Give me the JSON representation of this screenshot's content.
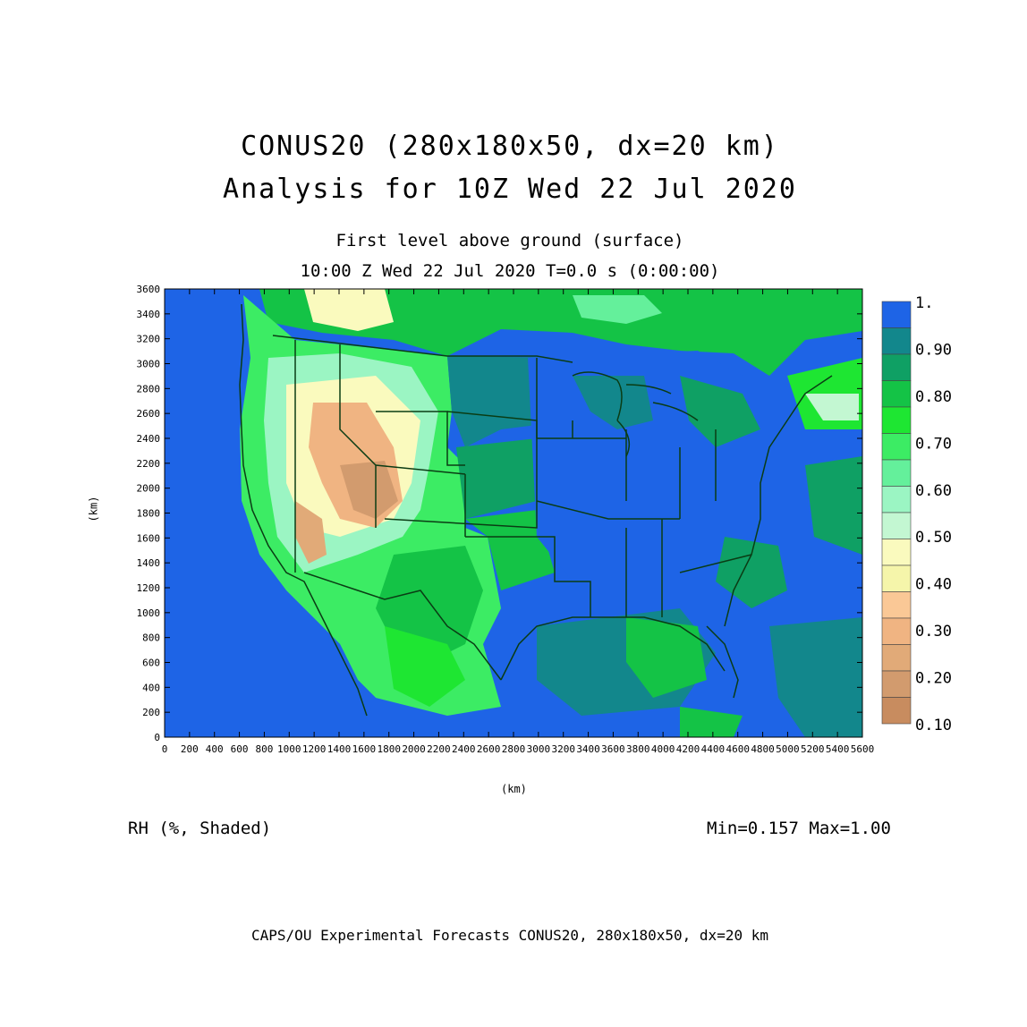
{
  "title": {
    "line1": "CONUS20 (280x180x50, dx=20 km)",
    "line2": "Analysis for 10Z Wed 22 Jul 2020"
  },
  "subtitle": {
    "level": "First level above ground (surface)",
    "time": "10:00 Z Wed 22 Jul 2020   T=0.0 s (0:00:00)"
  },
  "axes": {
    "ylabel": "(km)",
    "xlabel": "(km)",
    "x_ticks": [
      "0",
      "200",
      "400",
      "600",
      "800",
      "1000",
      "1200",
      "1400",
      "1600",
      "1800",
      "2000",
      "2200",
      "2400",
      "2600",
      "2800",
      "3000",
      "3200",
      "3400",
      "3600",
      "3800",
      "4000",
      "4200",
      "4400",
      "4600",
      "4800",
      "5000",
      "5200",
      "5400",
      "5600"
    ],
    "y_ticks": [
      "0",
      "200",
      "400",
      "600",
      "800",
      "1000",
      "1200",
      "1400",
      "1600",
      "1800",
      "2000",
      "2200",
      "2400",
      "2600",
      "2800",
      "3000",
      "3200",
      "3400",
      "3600"
    ],
    "x_range": [
      0,
      5600
    ],
    "y_range": [
      0,
      3600
    ]
  },
  "field_label": "RH (%, Shaded)",
  "min_max": "Min=0.157  Max=1.00",
  "footer": "CAPS/OU Experimental Forecasts  CONUS20, 280x180x50, dx=20 km",
  "legend": {
    "labels": [
      "1.",
      "0.90",
      "0.80",
      "0.70",
      "0.60",
      "0.50",
      "0.40",
      "0.30",
      "0.20",
      "0.10"
    ],
    "colors": [
      "#1e64e6",
      "#12878c",
      "#0fa064",
      "#14c346",
      "#1ee632",
      "#3cec64",
      "#64f09b",
      "#9bf5c3",
      "#c3f7d2",
      "#fafabe",
      "#f5f5aa",
      "#fac896",
      "#f0b482",
      "#e1aa78",
      "#d29b6e",
      "#c88c5f"
    ]
  },
  "colors": {
    "ocean": "#1e64e6",
    "borders": "#0a3c14"
  }
}
